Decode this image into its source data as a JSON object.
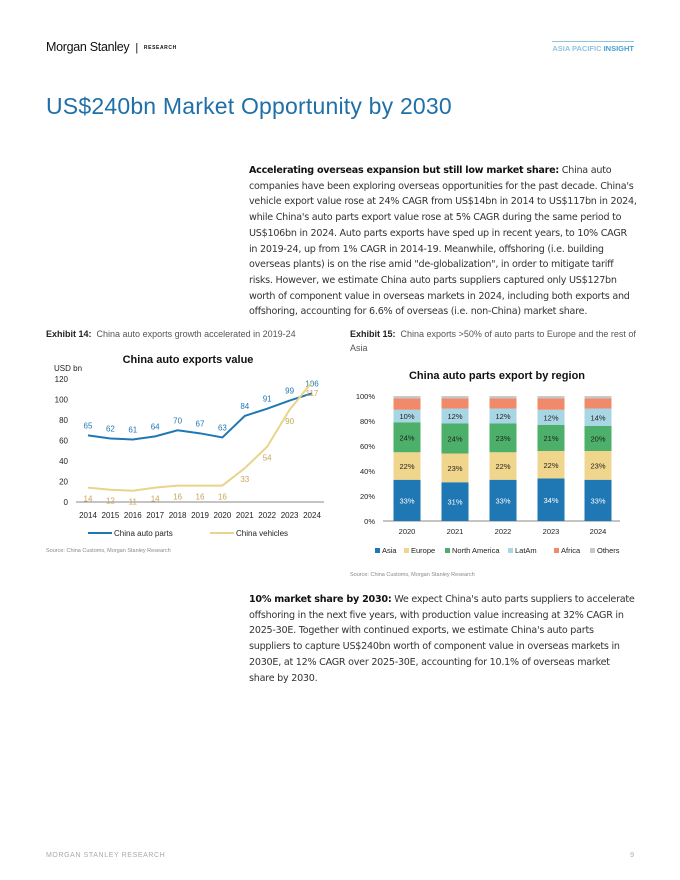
{
  "header": {
    "brand": "Morgan Stanley",
    "separator": "|",
    "section": "RESEARCH",
    "series_prefix": "ASIA PACIFIC",
    "series_suffix": "INSIGHT"
  },
  "page_title": "US$240bn Market Opportunity by 2030",
  "paragraph1": {
    "lead": "Accelerating overseas expansion but still low market share:",
    "body": " China auto companies have been exploring overseas opportunities for the past decade. China's vehicle export value rose at 24% CAGR from US$14bn in 2014 to US$117bn in 2024, while China's auto parts export value rose at 5% CAGR during the same period to US$106bn in 2024. Auto parts exports have sped up in recent years, to 10% CAGR in 2019-24, up from 1% CAGR in 2014-19. Meanwhile, offshoring (i.e. building overseas plants) is on the rise amid \"de-globalization\", in order to mitigate tariff risks. However, we estimate China auto parts suppliers captured only US$127bn worth of component value in overseas markets in 2024, including both exports and offshoring, accounting for 6.6% of overseas (i.e. non-China) market share."
  },
  "paragraph2": {
    "lead": "10% market share by 2030:",
    "body": " We expect China's auto parts suppliers to accelerate offshoring in the next five years, with production value increasing at 32% CAGR in 2025-30E. Together with continued exports, we estimate China's auto parts suppliers to capture US$240bn worth of component value in overseas markets in 2030E, at 12% CAGR over 2025-30E, accounting for 10.1% of overseas market share by 2030."
  },
  "exhibit14": {
    "label": "Exhibit 14:",
    "caption": "China auto exports growth accelerated in 2019-24",
    "source": "Source: China Customs, Morgan Stanley Research"
  },
  "exhibit15": {
    "label": "Exhibit 15:",
    "caption": "China exports >50% of auto parts to Europe and the rest of Asia",
    "source": "Source: China Customs, Morgan Stanley Research"
  },
  "footer": {
    "text": "MORGAN STANLEY RESEARCH",
    "page": "9"
  },
  "chart_data": [
    {
      "type": "line",
      "title": "China auto exports value",
      "ylabel": "USD bn",
      "ylim": [
        0,
        120
      ],
      "yticks": [
        "0",
        "20",
        "40",
        "60",
        "80",
        "100",
        "120"
      ],
      "categories": [
        "2014",
        "2015",
        "2016",
        "2017",
        "2018",
        "2019",
        "2020",
        "2021",
        "2022",
        "2023",
        "2024"
      ],
      "series": [
        {
          "name": "China auto parts",
          "color": "#1f77b4",
          "values": [
            65,
            62,
            61,
            64,
            70,
            67,
            63,
            84,
            91,
            99,
            106
          ]
        },
        {
          "name": "China vehicles",
          "color": "#e8d48a",
          "label_color": "#c8a45a",
          "values": [
            14,
            12,
            11,
            14,
            16,
            16,
            16,
            33,
            54,
            90,
            117
          ]
        }
      ],
      "legend": "bottom",
      "grid": false
    },
    {
      "type": "bar",
      "stacked": true,
      "title": "China auto parts export by region",
      "ylim": [
        0,
        100
      ],
      "yticks": [
        "0%",
        "20%",
        "40%",
        "60%",
        "80%",
        "100%"
      ],
      "categories": [
        "2020",
        "2021",
        "2022",
        "2023",
        "2024"
      ],
      "series": [
        {
          "name": "Asia",
          "color": "#1f77b4",
          "values": [
            33,
            31,
            33,
            34,
            33
          ],
          "labels": [
            "33%",
            "31%",
            "33%",
            "34%",
            "33%"
          ]
        },
        {
          "name": "Europe",
          "color": "#f0d58c",
          "values": [
            22,
            23,
            22,
            22,
            23
          ],
          "labels": [
            "22%",
            "23%",
            "22%",
            "22%",
            "23%"
          ]
        },
        {
          "name": "North America",
          "color": "#4caf6a",
          "values": [
            24,
            24,
            23,
            21,
            20
          ],
          "labels": [
            "24%",
            "24%",
            "23%",
            "21%",
            "20%"
          ]
        },
        {
          "name": "LatAm",
          "color": "#a9d6e5",
          "values": [
            10,
            12,
            12,
            12,
            14
          ],
          "labels": [
            "10%",
            "12%",
            "12%",
            "12%",
            "14%"
          ]
        },
        {
          "name": "Africa",
          "color": "#f08a6a",
          "values": [
            9,
            8,
            8,
            9,
            8
          ]
        },
        {
          "name": "Others",
          "color": "#c8c8c8",
          "values": [
            2,
            2,
            2,
            2,
            2
          ]
        }
      ],
      "legend": "bottom",
      "grid": false
    }
  ]
}
